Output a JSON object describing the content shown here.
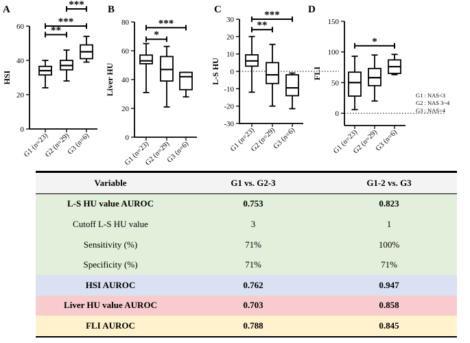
{
  "chart_data": [
    {
      "type": "boxplot",
      "panel_letter": "A",
      "ylabel": "HSI",
      "ylim": [
        0,
        60
      ],
      "yticks": [
        "0",
        "20",
        "40",
        "60"
      ],
      "categories": [
        "G1 (n=23)",
        "G2 (n=29)",
        "G3 (n=6)"
      ],
      "boxes": [
        {
          "min": 24,
          "q1": 31.5,
          "median": 34,
          "q3": 36.5,
          "max": 40
        },
        {
          "min": 28,
          "q1": 34.5,
          "median": 37,
          "q3": 40,
          "max": 46
        },
        {
          "min": 39,
          "q1": 41,
          "median": 45,
          "q3": 49,
          "max": 54
        }
      ],
      "significance": [
        {
          "from": 0,
          "to": 1,
          "label": "**",
          "y": 55
        },
        {
          "from": 0,
          "to": 2,
          "label": "***",
          "y": 60
        },
        {
          "from": 1,
          "to": 2,
          "label": "***",
          "y": 70
        }
      ]
    },
    {
      "type": "boxplot",
      "panel_letter": "B",
      "ylabel": "Liver HU",
      "ylim": [
        0,
        80
      ],
      "yticks": [
        "0",
        "20",
        "40",
        "60",
        "80"
      ],
      "categories": [
        "G1 (n=23)",
        "G2 (n=29)",
        "G3 (n=6)"
      ],
      "boxes": [
        {
          "min": 31,
          "q1": 51,
          "median": 53,
          "q3": 57,
          "max": 65
        },
        {
          "min": 21,
          "q1": 39,
          "median": 47,
          "q3": 56,
          "max": 63
        },
        {
          "min": 28,
          "q1": 33,
          "median": 42,
          "q3": 45,
          "max": 45
        }
      ],
      "significance": [
        {
          "from": 0,
          "to": 1,
          "label": "*",
          "y": 68
        },
        {
          "from": 0,
          "to": 2,
          "label": "***",
          "y": 76
        }
      ]
    },
    {
      "type": "boxplot",
      "panel_letter": "C",
      "ylabel": "L-S HU",
      "ylim": [
        -30,
        30
      ],
      "yticks": [
        "-30",
        "-20",
        "-10",
        "0",
        "10",
        "20",
        "30"
      ],
      "zero_line": true,
      "categories": [
        "G1 (n=23)",
        "G2 (n=29)",
        "G3 (n=6)"
      ],
      "boxes": [
        {
          "min": -12,
          "q1": 3,
          "median": 6,
          "q3": 9.5,
          "max": 20
        },
        {
          "min": -20,
          "q1": -7,
          "median": -2,
          "q3": 5,
          "max": 15.5
        },
        {
          "min": -21.5,
          "q1": -14,
          "median": -9.5,
          "q3": -2,
          "max": -1
        }
      ],
      "significance": [
        {
          "from": 0,
          "to": 1,
          "label": "**",
          "y": 24
        },
        {
          "from": 0,
          "to": 2,
          "label": "***",
          "y": 30
        }
      ]
    },
    {
      "type": "boxplot",
      "panel_letter": "D",
      "ylabel": "FLI",
      "ylim": [
        -20,
        150
      ],
      "yticks": [
        "0",
        "50",
        "100",
        "150"
      ],
      "zero_line": true,
      "categories": [
        "G1 (n=23)",
        "G2 (n=29)",
        "G3 (n=6)"
      ],
      "boxes": [
        {
          "min": 6,
          "q1": 28,
          "median": 50,
          "q3": 67,
          "max": 93
        },
        {
          "min": 20,
          "q1": 45,
          "median": 58,
          "q3": 73,
          "max": 95
        },
        {
          "min": 63,
          "q1": 65,
          "median": 76,
          "q3": 87,
          "max": 96
        }
      ],
      "significance": [
        {
          "from": 0,
          "to": 2,
          "label": "*",
          "y": 110
        }
      ]
    }
  ],
  "legend": [
    "G1 : NAS<3",
    "G2 : NAS 3~4",
    "G3 : NAS>4"
  ],
  "table": {
    "headers": [
      "Variable",
      "G1 vs. G2-3",
      "G1-2 vs. G3"
    ],
    "rows": [
      {
        "cells": [
          "L-S HU value AUROC",
          "0.753",
          "0.823"
        ],
        "bg": "#e2efda",
        "bold": true
      },
      {
        "cells": [
          "Cutoff L-S HU value",
          "3",
          "1"
        ],
        "bg": "#e2efda",
        "bold": false
      },
      {
        "cells": [
          "Sensitivity (%)",
          "71%",
          "100%"
        ],
        "bg": "#e2efda",
        "bold": false
      },
      {
        "cells": [
          "Specificity (%)",
          "71%",
          "71%"
        ],
        "bg": "#e2efda",
        "bold": false
      },
      {
        "cells": [
          "HSI AUROC",
          "0.762",
          "0.947"
        ],
        "bg": "#d9e1f2",
        "bold": true
      },
      {
        "cells": [
          "Liver HU value AUROC",
          "0.703",
          "0.858"
        ],
        "bg": "#f8cbce",
        "bold": true
      },
      {
        "cells": [
          "FLI AUROC",
          "0.788",
          "0.845"
        ],
        "bg": "#fff2cc",
        "bold": true
      }
    ]
  }
}
